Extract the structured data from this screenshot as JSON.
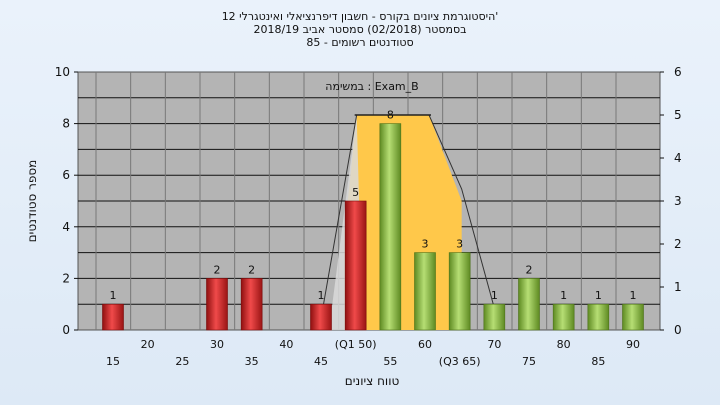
{
  "title_lines": [
    "היסטוגרמת ציונים בקורס - חשבון דיפרנציאלי ואינטגרלי 12'",
    "בסמסטר  (02/2018)  סמסטר אביב 2018/19",
    "סטודנטים רשומים - 85"
  ],
  "chart_data": {
    "type": "bar",
    "annotation": "במשימה : Exam_B",
    "xlabel": "טווח ציונים",
    "ylabel": "מספר סטודנטים",
    "ylim": [
      0,
      10
    ],
    "y2lim": [
      0,
      6
    ],
    "yticks": [
      "0",
      "2",
      "4",
      "6",
      "8",
      "10"
    ],
    "y2ticks": [
      "0",
      "1",
      "2",
      "3",
      "4",
      "5",
      "6"
    ],
    "x_tick_labels": [
      {
        "x": 15,
        "label": "15",
        "row": 2
      },
      {
        "x": 20,
        "label": "20",
        "row": 1
      },
      {
        "x": 25,
        "label": "25",
        "row": 2
      },
      {
        "x": 30,
        "label": "30",
        "row": 1
      },
      {
        "x": 35,
        "label": "35",
        "row": 2
      },
      {
        "x": 40,
        "label": "40",
        "row": 1
      },
      {
        "x": 45,
        "label": "45",
        "row": 2
      },
      {
        "x": 50,
        "label": "(Q1 50)",
        "row": 1
      },
      {
        "x": 55,
        "label": "55",
        "row": 2
      },
      {
        "x": 60,
        "label": "60",
        "row": 1
      },
      {
        "x": 65,
        "label": "(Q3 65)",
        "row": 2
      },
      {
        "x": 70,
        "label": "70",
        "row": 1
      },
      {
        "x": 75,
        "label": "75",
        "row": 2
      },
      {
        "x": 80,
        "label": "80",
        "row": 1
      },
      {
        "x": 85,
        "label": "85",
        "row": 2
      },
      {
        "x": 90,
        "label": "90",
        "row": 1
      }
    ],
    "bars": [
      {
        "x": 15,
        "value": 1,
        "label": "1",
        "color": "red"
      },
      {
        "x": 30,
        "value": 2,
        "label": "2",
        "color": "red"
      },
      {
        "x": 35,
        "value": 2,
        "label": "2",
        "color": "red"
      },
      {
        "x": 45,
        "value": 1,
        "label": "1",
        "color": "red"
      },
      {
        "x": 50,
        "value": 5,
        "label": "5",
        "color": "red"
      },
      {
        "x": 55,
        "value": 8,
        "label": "8",
        "color": "green"
      },
      {
        "x": 60,
        "value": 3,
        "label": "3",
        "color": "green"
      },
      {
        "x": 65,
        "value": 3,
        "label": "3",
        "color": "green"
      },
      {
        "x": 70,
        "value": 1,
        "label": "1",
        "color": "green"
      },
      {
        "x": 75,
        "value": 2,
        "label": "2",
        "color": "green"
      },
      {
        "x": 80,
        "value": 1,
        "label": "1",
        "color": "green"
      },
      {
        "x": 85,
        "value": 1,
        "label": "1",
        "color": "green"
      },
      {
        "x": 90,
        "value": 1,
        "label": "1",
        "color": "green"
      }
    ],
    "box_overlay": {
      "q1": 50,
      "q3": 65,
      "y2_top": 5,
      "fill": "#ffc84a",
      "whisker_low_x": 45,
      "whisker_high_x": 70
    },
    "colors": {
      "plot_background": "#b4b4b4",
      "red_bar": "#e02a2a",
      "green_bar": "#8cc04a",
      "overlay": "#ffc84a"
    },
    "grid": true
  }
}
